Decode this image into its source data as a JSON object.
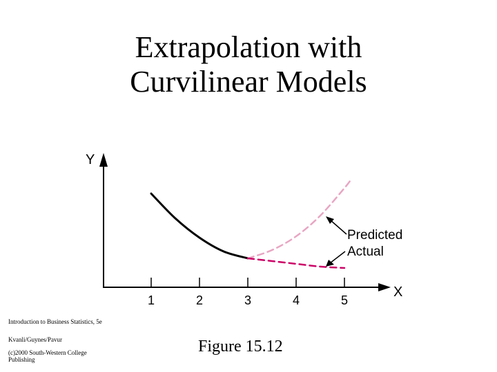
{
  "slide": {
    "title_line1": "Extrapolation with",
    "title_line2": "Curvilinear Models",
    "figure_label": "Figure 15.12",
    "footer": {
      "line1": "Introduction to Business Statistics, 5e",
      "line2": "Kvanli/Guynes/Pavur",
      "line3": "(c)2000 South-Western College",
      "line4": "Publishing"
    }
  },
  "chart_data": {
    "type": "line",
    "xlabel": "X",
    "ylabel": "Y",
    "x_ticks": [
      1,
      2,
      3,
      4,
      5
    ],
    "xlim": [
      0,
      6.3
    ],
    "ylim": [
      0,
      10
    ],
    "series": [
      {
        "name": "observed",
        "style": "solid",
        "color": "#000000",
        "x": [
          1.0,
          1.5,
          2.0,
          2.5,
          3.0
        ],
        "y": [
          6.8,
          5.0,
          3.6,
          2.6,
          2.1
        ]
      },
      {
        "name": "Predicted",
        "style": "dashed",
        "color": "#e8a6c2",
        "x": [
          3.0,
          3.5,
          4.0,
          4.5,
          5.0,
          5.15
        ],
        "y": [
          2.1,
          2.7,
          3.7,
          5.2,
          7.2,
          7.9
        ]
      },
      {
        "name": "Actual",
        "style": "dashed",
        "color": "#cc0066",
        "x": [
          3.0,
          3.5,
          4.0,
          4.5,
          5.0
        ],
        "y": [
          2.1,
          1.9,
          1.7,
          1.5,
          1.4
        ]
      }
    ],
    "annotations": [
      "Predicted",
      "Actual"
    ]
  }
}
